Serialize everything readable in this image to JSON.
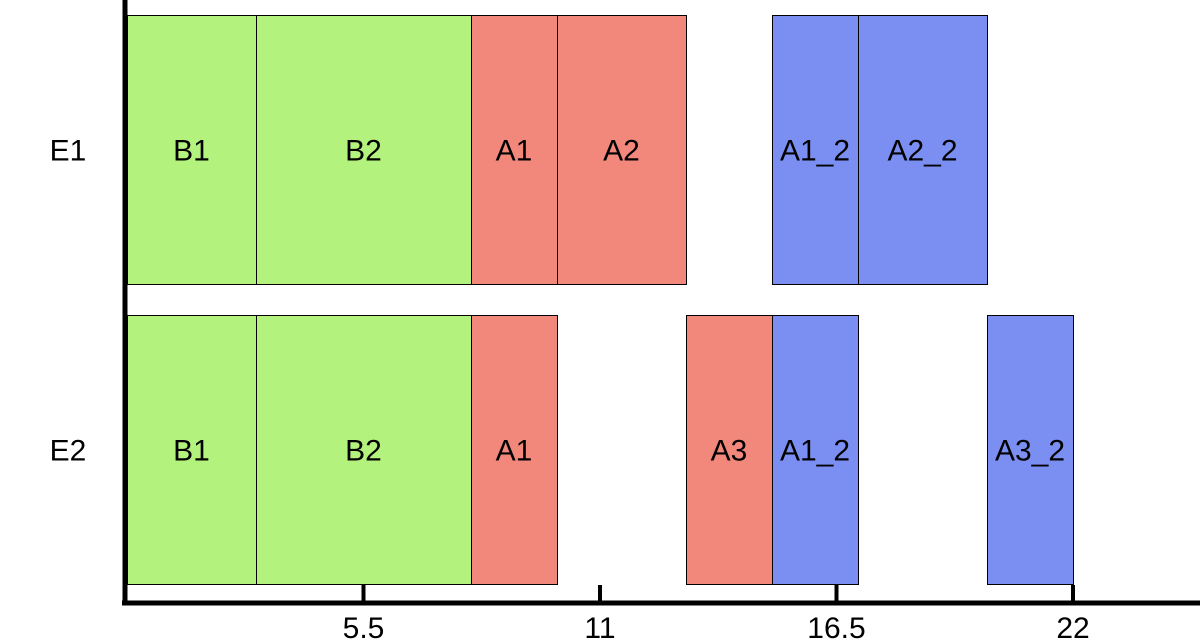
{
  "chart_data": {
    "type": "gantt",
    "title": "",
    "xlabel": "",
    "ylabel": "",
    "xlim": [
      0,
      25
    ],
    "xticks": [
      5.5,
      11,
      16.5,
      22
    ],
    "xtick_labels": [
      "5.5",
      "11",
      "16.5",
      "22"
    ],
    "grid": false,
    "rows": [
      {
        "label": "E1",
        "tasks": [
          {
            "label": "B1",
            "start": 0,
            "end": 3,
            "group": "B"
          },
          {
            "label": "B2",
            "start": 3,
            "end": 8,
            "group": "B"
          },
          {
            "label": "A1",
            "start": 8,
            "end": 10,
            "group": "A"
          },
          {
            "label": "A2",
            "start": 10,
            "end": 13,
            "group": "A"
          },
          {
            "label": "A1_2",
            "start": 15,
            "end": 17,
            "group": "A_2"
          },
          {
            "label": "A2_2",
            "start": 17,
            "end": 20,
            "group": "A_2"
          }
        ]
      },
      {
        "label": "E2",
        "tasks": [
          {
            "label": "B1",
            "start": 0,
            "end": 3,
            "group": "B"
          },
          {
            "label": "B2",
            "start": 3,
            "end": 8,
            "group": "B"
          },
          {
            "label": "A1",
            "start": 8,
            "end": 10,
            "group": "A"
          },
          {
            "label": "A3",
            "start": 13,
            "end": 15,
            "group": "A"
          },
          {
            "label": "A1_2",
            "start": 15,
            "end": 17,
            "group": "A_2"
          },
          {
            "label": "A3_2",
            "start": 20,
            "end": 22,
            "group": "A_2"
          }
        ]
      }
    ],
    "colors": {
      "B": "#b3f27d",
      "A": "#f2877b",
      "A_2": "#7b8ff2"
    }
  }
}
